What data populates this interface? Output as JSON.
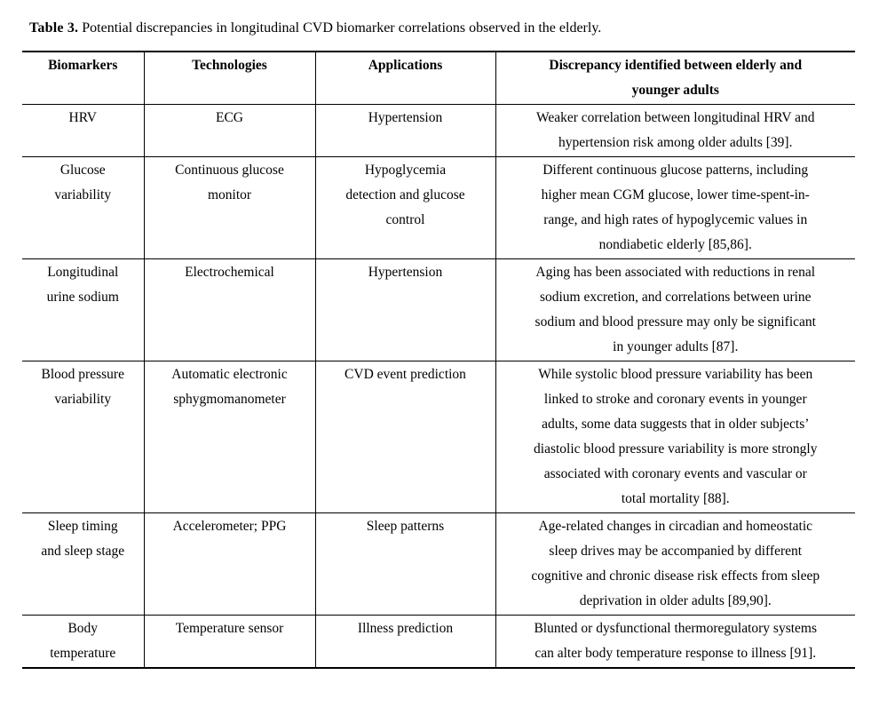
{
  "caption": {
    "label": "Table 3.",
    "text": "Potential discrepancies in longitudinal CVD biomarker correlations observed in the elderly."
  },
  "table": {
    "headers": [
      "Biomarkers",
      "Technologies",
      "Applications",
      "Discrepancy identified between elderly and\nyounger adults"
    ],
    "rows": [
      {
        "biomarker": "HRV",
        "technology": "ECG",
        "application": "Hypertension",
        "discrepancy": "Weaker correlation between longitudinal HRV and\nhypertension risk among older adults [39]."
      },
      {
        "biomarker": "Glucose\nvariability",
        "technology": "Continuous glucose\nmonitor",
        "application": "Hypoglycemia\ndetection and glucose\ncontrol",
        "discrepancy": "Different continuous glucose patterns, including\nhigher mean CGM glucose, lower time-spent-in-\nrange, and high rates of hypoglycemic values in\nnondiabetic elderly [85,86]."
      },
      {
        "biomarker": "Longitudinal\nurine sodium",
        "technology": "Electrochemical",
        "application": "Hypertension",
        "discrepancy": "Aging has been associated with reductions in renal\nsodium excretion, and correlations between urine\nsodium and blood pressure may only be significant\nin younger adults [87]."
      },
      {
        "biomarker": "Blood pressure\nvariability",
        "technology": "Automatic electronic\nsphygmomanometer",
        "application": "CVD event prediction",
        "discrepancy": "While systolic blood pressure variability has been\nlinked to stroke and coronary events in younger\nadults, some data suggests that in older subjects’\ndiastolic blood pressure variability is more strongly\nassociated with coronary events and vascular or\ntotal mortality [88]."
      },
      {
        "biomarker": "Sleep timing\nand sleep stage",
        "technology": "Accelerometer; PPG",
        "application": "Sleep patterns",
        "discrepancy": "Age-related changes in circadian and homeostatic\nsleep drives may be accompanied by different\ncognitive and chronic disease risk effects from sleep\ndeprivation in older adults [89,90]."
      },
      {
        "biomarker": "Body\ntemperature",
        "technology": "Temperature sensor",
        "application": "Illness prediction",
        "discrepancy": "Blunted or dysfunctional thermoregulatory systems\ncan alter body temperature response to illness [91]."
      }
    ]
  }
}
